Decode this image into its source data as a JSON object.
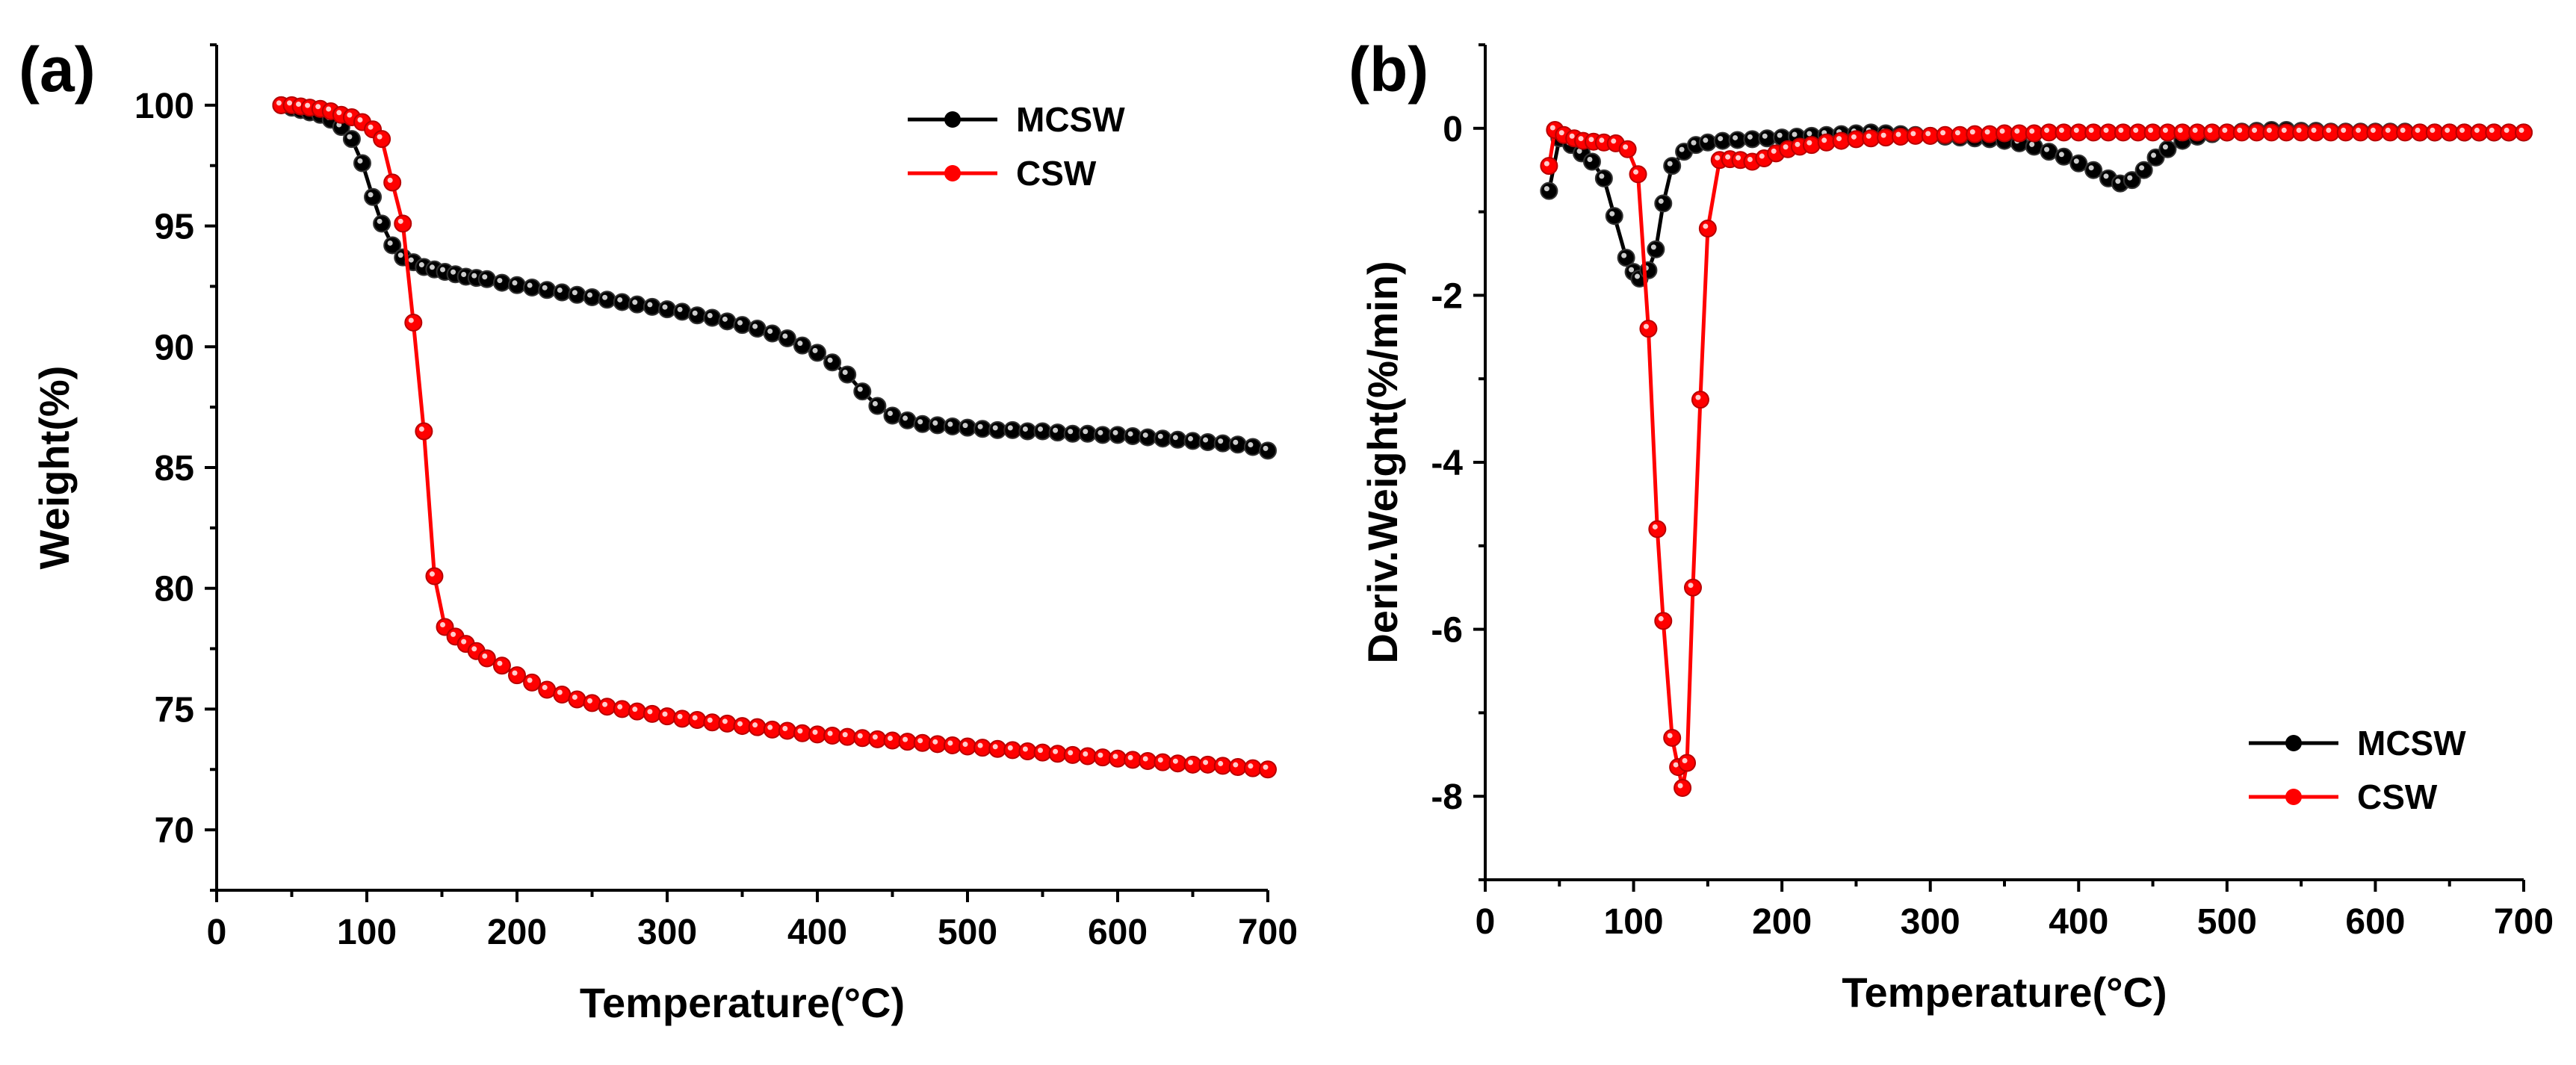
{
  "chart_data": [
    {
      "type": "line",
      "panel_label": "(a)",
      "title": "",
      "xlabel": "Temperature(°C)",
      "ylabel": "Weight(%)",
      "xlim": [
        0,
        700
      ],
      "ylim": [
        67.5,
        102.5
      ],
      "xticks": [
        "0",
        "100",
        "200",
        "300",
        "400",
        "500",
        "600",
        "700"
      ],
      "yticks": [
        "70",
        "75",
        "80",
        "85",
        "90",
        "95",
        "100"
      ],
      "grid": false,
      "legend_position": "top-right",
      "series": [
        {
          "name": "MCSW",
          "color": "#000000",
          "x": [
            43,
            50,
            56,
            62,
            69,
            76,
            83,
            90,
            97,
            104,
            110,
            117,
            124,
            131,
            138,
            145,
            152,
            159,
            166,
            173,
            180,
            190,
            200,
            210,
            220,
            230,
            240,
            250,
            260,
            270,
            280,
            290,
            300,
            310,
            320,
            330,
            340,
            350,
            360,
            370,
            380,
            390,
            400,
            410,
            420,
            430,
            440,
            450,
            460,
            470,
            480,
            490,
            500,
            510,
            520,
            530,
            540,
            550,
            560,
            570,
            580,
            590,
            600,
            610,
            620,
            630,
            640,
            650,
            660,
            670,
            680,
            690,
            700
          ],
          "y": [
            100,
            99.9,
            99.8,
            99.7,
            99.6,
            99.4,
            99.1,
            98.6,
            97.6,
            96.2,
            95.1,
            94.2,
            93.7,
            93.5,
            93.3,
            93.2,
            93.1,
            93.0,
            92.9,
            92.85,
            92.8,
            92.65,
            92.55,
            92.45,
            92.35,
            92.25,
            92.15,
            92.05,
            91.95,
            91.85,
            91.75,
            91.65,
            91.55,
            91.45,
            91.3,
            91.2,
            91.05,
            90.9,
            90.75,
            90.55,
            90.35,
            90.05,
            89.75,
            89.35,
            88.85,
            88.15,
            87.55,
            87.15,
            86.95,
            86.8,
            86.75,
            86.7,
            86.65,
            86.6,
            86.55,
            86.55,
            86.5,
            86.5,
            86.45,
            86.4,
            86.4,
            86.35,
            86.35,
            86.3,
            86.25,
            86.2,
            86.15,
            86.1,
            86.05,
            86.0,
            85.95,
            85.85,
            85.7
          ]
        },
        {
          "name": "CSW",
          "color": "#ff0000",
          "x": [
            43,
            50,
            56,
            62,
            69,
            76,
            83,
            90,
            97,
            104,
            110,
            117,
            124,
            131,
            138,
            145,
            152,
            159,
            166,
            173,
            180,
            190,
            200,
            210,
            220,
            230,
            240,
            250,
            260,
            270,
            280,
            290,
            300,
            310,
            320,
            330,
            340,
            350,
            360,
            370,
            380,
            390,
            400,
            410,
            420,
            430,
            440,
            450,
            460,
            470,
            480,
            490,
            500,
            510,
            520,
            530,
            540,
            550,
            560,
            570,
            580,
            590,
            600,
            610,
            620,
            630,
            640,
            650,
            660,
            670,
            680,
            690,
            700
          ],
          "y": [
            100,
            100,
            99.95,
            99.9,
            99.85,
            99.75,
            99.6,
            99.5,
            99.3,
            99.0,
            98.6,
            96.8,
            95.1,
            91.0,
            86.5,
            80.5,
            78.4,
            78.0,
            77.7,
            77.4,
            77.1,
            76.8,
            76.4,
            76.1,
            75.8,
            75.6,
            75.4,
            75.25,
            75.1,
            75.0,
            74.9,
            74.8,
            74.7,
            74.6,
            74.55,
            74.45,
            74.4,
            74.3,
            74.25,
            74.15,
            74.1,
            74.0,
            73.95,
            73.9,
            73.85,
            73.8,
            73.75,
            73.7,
            73.65,
            73.6,
            73.55,
            73.5,
            73.45,
            73.4,
            73.35,
            73.3,
            73.25,
            73.2,
            73.15,
            73.1,
            73.05,
            73.0,
            72.95,
            72.9,
            72.85,
            72.8,
            72.75,
            72.7,
            72.7,
            72.65,
            72.6,
            72.55,
            72.5
          ]
        }
      ]
    },
    {
      "type": "line",
      "panel_label": "(b)",
      "title": "",
      "xlabel": "Temperature(°C)",
      "ylabel": "Deriv.Weight(%/min)",
      "xlim": [
        0,
        700
      ],
      "ylim": [
        -9,
        1
      ],
      "xticks": [
        "0",
        "100",
        "200",
        "300",
        "400",
        "500",
        "600",
        "700"
      ],
      "yticks": [
        "-8",
        "-6",
        "-4",
        "-2",
        "0"
      ],
      "grid": false,
      "legend_position": "bottom-right",
      "series": [
        {
          "name": "MCSW",
          "color": "#000000",
          "x": [
            43,
            50,
            58,
            65,
            72,
            80,
            87,
            95,
            100,
            104,
            110,
            115,
            120,
            126,
            134,
            142,
            150,
            160,
            170,
            180,
            190,
            200,
            210,
            220,
            230,
            240,
            250,
            260,
            270,
            280,
            290,
            300,
            310,
            320,
            330,
            340,
            350,
            360,
            370,
            380,
            390,
            400,
            410,
            420,
            428,
            436,
            444,
            452,
            460,
            470,
            480,
            490,
            500,
            510,
            520,
            530,
            540,
            550,
            560,
            570,
            580,
            590,
            600,
            610,
            620,
            630,
            640,
            650,
            660,
            670,
            680,
            690,
            700
          ],
          "y": [
            -0.75,
            -0.12,
            -0.2,
            -0.3,
            -0.4,
            -0.6,
            -1.05,
            -1.55,
            -1.72,
            -1.8,
            -1.7,
            -1.45,
            -0.9,
            -0.45,
            -0.28,
            -0.2,
            -0.17,
            -0.15,
            -0.14,
            -0.13,
            -0.12,
            -0.11,
            -0.1,
            -0.09,
            -0.08,
            -0.07,
            -0.06,
            -0.05,
            -0.06,
            -0.07,
            -0.08,
            -0.09,
            -0.1,
            -0.11,
            -0.12,
            -0.13,
            -0.15,
            -0.18,
            -0.22,
            -0.28,
            -0.34,
            -0.42,
            -0.5,
            -0.6,
            -0.66,
            -0.62,
            -0.5,
            -0.35,
            -0.25,
            -0.15,
            -0.1,
            -0.07,
            -0.05,
            -0.04,
            -0.03,
            -0.02,
            -0.02,
            -0.03,
            -0.03,
            -0.04,
            -0.04,
            -0.04,
            -0.04,
            -0.04,
            -0.04,
            -0.05,
            -0.05,
            -0.05,
            -0.05,
            -0.05,
            -0.05,
            -0.05,
            -0.05
          ]
        },
        {
          "name": "CSW",
          "color": "#ff0000",
          "x": [
            43,
            47,
            53,
            60,
            66,
            73,
            80,
            88,
            96,
            103,
            110,
            116,
            120,
            126,
            130,
            133,
            136,
            140,
            145,
            150,
            158,
            165,
            172,
            180,
            188,
            196,
            204,
            212,
            220,
            230,
            240,
            250,
            260,
            270,
            280,
            290,
            300,
            310,
            320,
            330,
            340,
            350,
            360,
            370,
            380,
            390,
            400,
            410,
            420,
            430,
            440,
            450,
            460,
            470,
            480,
            490,
            500,
            510,
            520,
            530,
            540,
            550,
            560,
            570,
            580,
            590,
            600,
            610,
            620,
            630,
            640,
            650,
            660,
            670,
            680,
            690,
            700
          ],
          "y": [
            -0.45,
            -0.02,
            -0.08,
            -0.12,
            -0.15,
            -0.16,
            -0.17,
            -0.18,
            -0.25,
            -0.55,
            -2.4,
            -4.8,
            -5.9,
            -7.3,
            -7.65,
            -7.9,
            -7.6,
            -5.5,
            -3.25,
            -1.2,
            -0.38,
            -0.37,
            -0.38,
            -0.4,
            -0.36,
            -0.3,
            -0.25,
            -0.22,
            -0.2,
            -0.17,
            -0.15,
            -0.13,
            -0.12,
            -0.11,
            -0.1,
            -0.09,
            -0.09,
            -0.08,
            -0.08,
            -0.07,
            -0.07,
            -0.06,
            -0.06,
            -0.06,
            -0.05,
            -0.05,
            -0.05,
            -0.05,
            -0.05,
            -0.05,
            -0.05,
            -0.05,
            -0.05,
            -0.05,
            -0.05,
            -0.05,
            -0.05,
            -0.05,
            -0.05,
            -0.05,
            -0.05,
            -0.05,
            -0.05,
            -0.05,
            -0.05,
            -0.05,
            -0.05,
            -0.05,
            -0.05,
            -0.05,
            -0.05,
            -0.05,
            -0.05,
            -0.05,
            -0.05,
            -0.05,
            -0.05
          ]
        }
      ]
    }
  ]
}
